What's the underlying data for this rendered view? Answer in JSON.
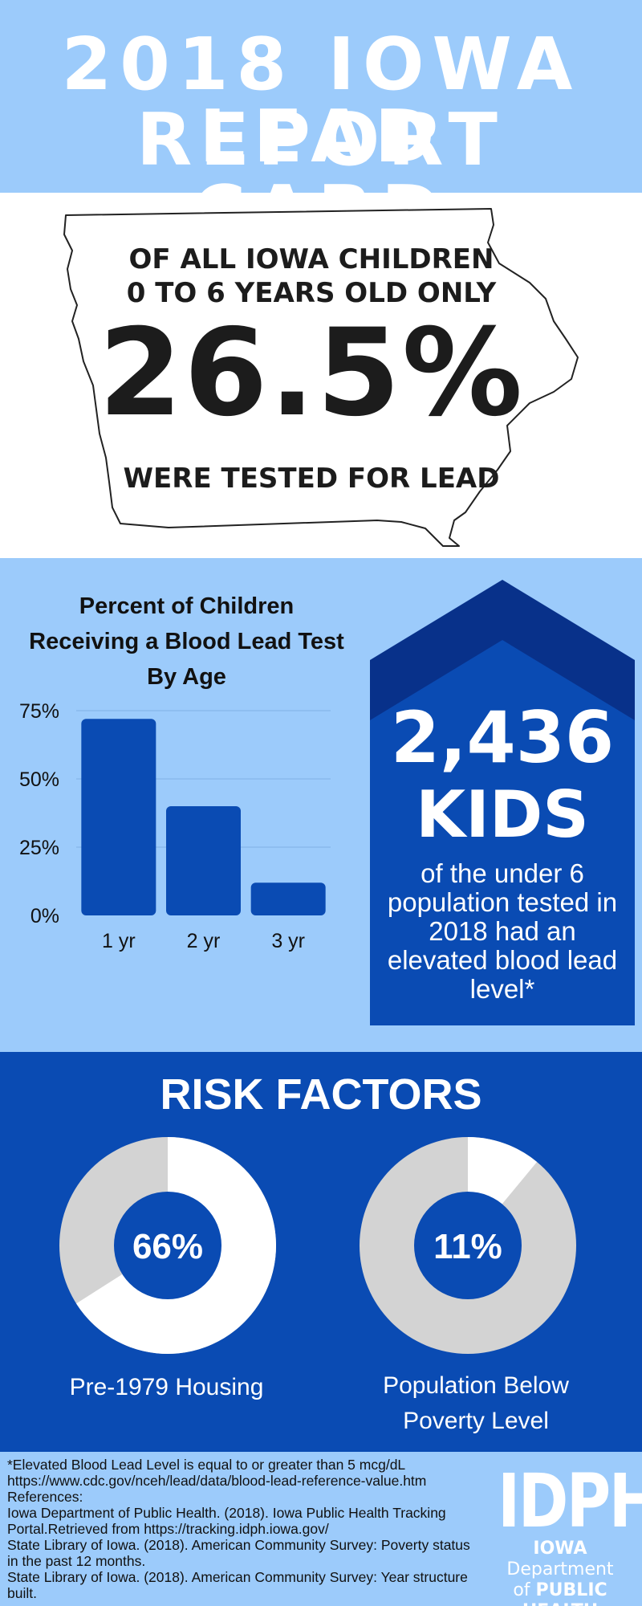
{
  "header": {
    "title_line1": "2018 IOWA LEAD",
    "title_line2": "REPORT CARD"
  },
  "testing": {
    "line1": "OF ALL IOWA CHILDREN",
    "line2": "0 TO 6 YEARS OLD ONLY",
    "percent": "26.5%",
    "line3": "WERE TESTED FOR LEAD"
  },
  "chart_data": {
    "type": "bar",
    "title": "Percent of Children Receiving a Blood Lead Test By Age",
    "title_lines": [
      "Percent of Children",
      "Receiving a Blood Lead Test",
      "By Age"
    ],
    "categories": [
      "1 yr",
      "2 yr",
      "3 yr"
    ],
    "values": [
      72,
      40,
      12
    ],
    "ylim": [
      0,
      75
    ],
    "yticks": [
      0,
      25,
      50,
      75
    ],
    "ytick_labels": [
      "0%",
      "25%",
      "50%",
      "75%"
    ],
    "grid": true,
    "bar_color": "#0a4bb3"
  },
  "elevated": {
    "number": "2,436",
    "label": "KIDS",
    "description": "of the under 6 population tested in 2018 had an elevated blood lead level*"
  },
  "risk": {
    "title": "RISK FACTORS",
    "items": [
      {
        "label": "Pre-1979 Housing",
        "value": 66,
        "value_label": "66%"
      },
      {
        "label_line1": "Population Below",
        "label_line2": "Poverty Level",
        "value": 11,
        "value_label": "11%"
      }
    ],
    "colors": {
      "filled": "#ffffff",
      "remaining": "#d3d3d3",
      "center": "#0a4bb3"
    }
  },
  "footer": {
    "refs": [
      "*Elevated Blood Lead Level is equal to or greater than 5 mcg/dL",
      "https://www.cdc.gov/nceh/lead/data/blood-lead-reference-value.htm",
      "References:",
      "Iowa Department of Public Health. (2018). Iowa Public Health Tracking Portal.Retrieved from https://tracking.idph.iowa.gov/",
      "State Library of Iowa. (2018). American Community Survey: Poverty status in the past 12 months.",
      "State Library of Iowa. (2018). American Community Survey: Year structure built."
    ],
    "logo": {
      "mark": "IDPH",
      "line1_a": "IOWA",
      "line1_b": "Department",
      "line2_a": "of",
      "line2_b": "PUBLIC HEALTH"
    }
  },
  "colors": {
    "light_blue": "#9ccbfb",
    "blue": "#0a4bb3",
    "navy": "#08318a"
  }
}
